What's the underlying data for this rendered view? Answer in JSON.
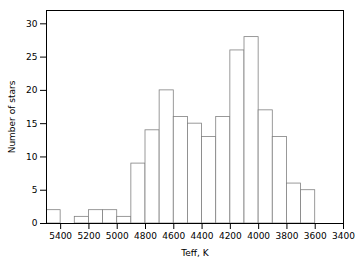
{
  "chart_data": {
    "type": "histogram",
    "bins": [
      5500,
      5400,
      5300,
      5200,
      5100,
      5000,
      4900,
      4800,
      4700,
      4600,
      4500,
      4400,
      4300,
      4200,
      4100,
      4000,
      3900,
      3800,
      3700,
      3600,
      3500
    ],
    "values": [
      2,
      0,
      1,
      2,
      2,
      1,
      9,
      14,
      20,
      16,
      15,
      13,
      16,
      26,
      28,
      17,
      13,
      6,
      5,
      0
    ],
    "color": "white",
    "xlabel": "Teff, K",
    "ylabel": "Number of stars",
    "xlim": [
      5500,
      3400
    ],
    "ylim": [
      0,
      32
    ],
    "xticks": [
      5400,
      5200,
      5000,
      4800,
      4600,
      4400,
      4200,
      4000,
      3800,
      3600,
      3400
    ],
    "yticks": [
      0,
      5,
      10,
      15,
      20,
      25,
      30
    ],
    "grid": false
  }
}
